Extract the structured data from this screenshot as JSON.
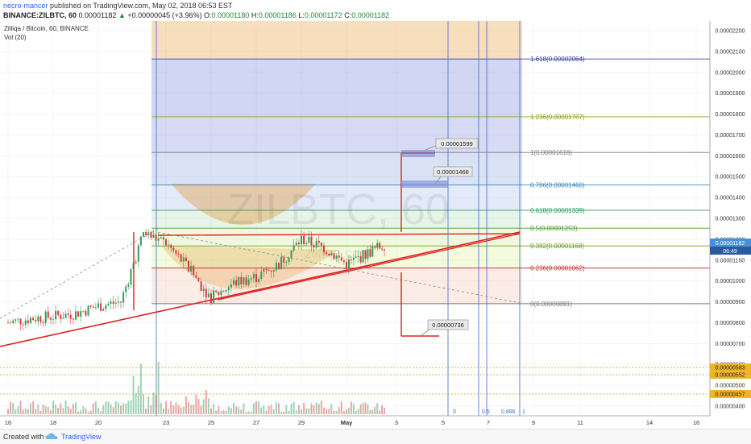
{
  "header": {
    "author": "necro-mancer",
    "published_text": "published on TradingView.com, May 02, 2018 06:53 EST",
    "symbol_line": "BINANCE:ZILBTC, 60",
    "last": "0.00001182",
    "change": "+0.00000045 (+3.96%)",
    "o_label": "O:",
    "o": "0.00001180",
    "h_label": "H:",
    "h": "0.00001186",
    "l_label": "L:",
    "l": "0.00001172",
    "c_label": "C:",
    "c": "0.00001182"
  },
  "legend": {
    "pair": "Zilliqa / Bitcoin, 60, BINANCE",
    "volume": "Vol (20)"
  },
  "watermark": {
    "big": "ZILBTC, 60",
    "small": "zilliqa.com"
  },
  "price_axis": {
    "ticks": [
      "0.00002200",
      "0.00002100",
      "0.00002000",
      "0.00001900",
      "0.00001800",
      "0.00001700",
      "0.00001600",
      "0.00001500",
      "0.00001400",
      "0.00001300",
      "0.00001200",
      "0.00001100",
      "0.00001000",
      "0.00000900",
      "0.00000800",
      "0.00000700",
      "0.00000600",
      "0.00000500",
      "0.00000400"
    ],
    "current_price": "0.00001182",
    "countdown": "06:49",
    "markers": [
      "0.00000583",
      "0.00000552",
      "0.00000457"
    ]
  },
  "time_axis": [
    "16",
    "18",
    "20",
    "23",
    "25",
    "27",
    "29",
    "May",
    "3",
    "5",
    "7",
    "9",
    "11",
    "14",
    "16"
  ],
  "fib_levels": [
    {
      "ratio": "1.618",
      "price": "0.00002064",
      "label": "1.618(0.00002064)",
      "color": "#3a3aa8"
    },
    {
      "ratio": "1.236",
      "price": "0.00001787",
      "label": "1.236(0.00001787)",
      "color": "#8aa41a"
    },
    {
      "ratio": "1",
      "price": "0.00001616",
      "label": "1(0.00001616)",
      "color": "#7a7a7a"
    },
    {
      "ratio": "0.786",
      "price": "0.00001460",
      "label": "0.786(0.00001460)",
      "color": "#3a8ab8"
    },
    {
      "ratio": "0.618",
      "price": "0.00001339",
      "label": "0.618(0.00001339)",
      "color": "#2a9a5a"
    },
    {
      "ratio": "0.5",
      "price": "0.00001253",
      "label": "0.5(0.00001253)",
      "color": "#4aa02a"
    },
    {
      "ratio": "0.382",
      "price": "0.00001168",
      "label": "0.382(0.00001168)",
      "color": "#6aa01a"
    },
    {
      "ratio": "0.236",
      "price": "0.00001062",
      "label": "0.236(0.00001062)",
      "color": "#c83a3a"
    },
    {
      "ratio": "0",
      "price": "0.00000891",
      "label": "0(0.00000891)",
      "color": "#7a7a7a"
    }
  ],
  "fib_time_labels": [
    "0",
    "0.5",
    "0.886",
    "1"
  ],
  "callouts": [
    "0.00001599",
    "0.00001468",
    "0.00000736"
  ],
  "chart_data": {
    "type": "candlestick",
    "pair": "Zilliqa / Bitcoin, 60, BINANCE",
    "x_ticks": [
      "16",
      "18",
      "20",
      "23",
      "25",
      "27",
      "29",
      "May",
      "3",
      "5",
      "7",
      "9",
      "11",
      "14",
      "16"
    ],
    "y_range": [
      3.8e-06,
      2.26e-05
    ],
    "close_path": [
      [
        "16",
        8e-06
      ],
      [
        "17",
        8.2e-06
      ],
      [
        "18",
        8.3e-06
      ],
      [
        "19",
        8.45e-06
      ],
      [
        "20",
        8.8e-06
      ],
      [
        "21",
        9e-06
      ],
      [
        "22",
        1.23e-05
      ],
      [
        "23",
        1.18e-05
      ],
      [
        "24",
        1.06e-05
      ],
      [
        "25",
        9.2e-06
      ],
      [
        "26",
        9.9e-06
      ],
      [
        "27",
        1.02e-05
      ],
      [
        "28",
        1.08e-05
      ],
      [
        "29",
        1.2e-05
      ],
      [
        "30",
        1.16e-05
      ],
      [
        "May",
        1.08e-05
      ],
      [
        "2",
        1.182e-05
      ]
    ],
    "fib_retracement": {
      "high": 1.616e-05,
      "low": 8.91e-06
    },
    "volume_series": "Vol (20)"
  },
  "footer": {
    "created_with": "Created with",
    "brand": "TradingView"
  }
}
